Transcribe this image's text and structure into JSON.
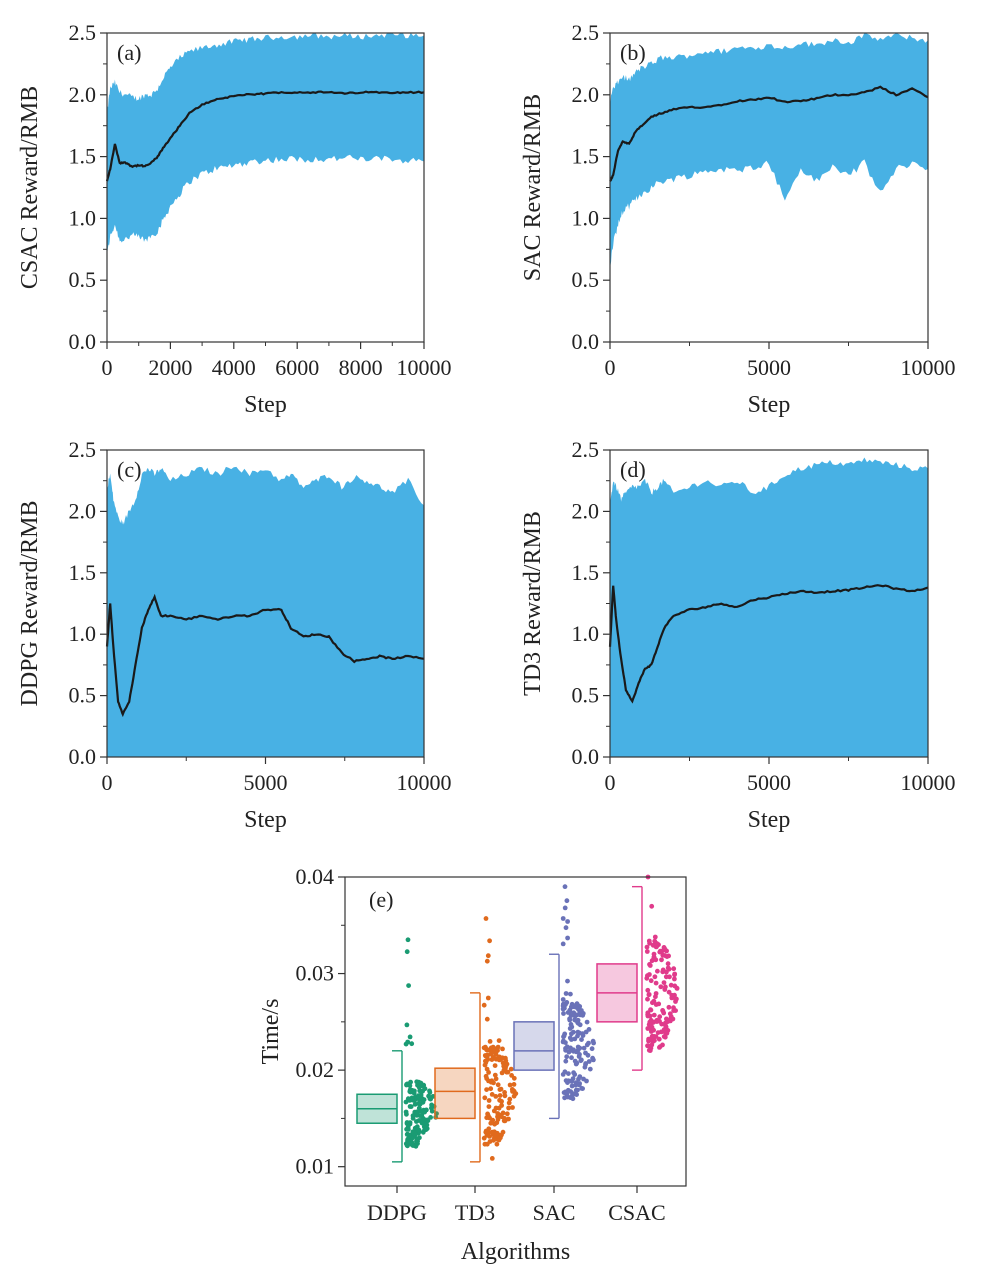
{
  "colors": {
    "band": "#48b1e4",
    "mean_line": "#1a1a1a",
    "axis": "#333333",
    "DDPG": "#1a9b73",
    "TD3": "#e06a1d",
    "SAC": "#6a72b8",
    "CSAC": "#e03b8b"
  },
  "chart_data": [
    {
      "type": "area",
      "panel_label": "(a)",
      "xlabel": "Step",
      "ylabel": "CSAC Reward/RMB",
      "xlim": [
        0,
        10000
      ],
      "ylim": [
        0,
        2.5
      ],
      "xticks": [
        0,
        2000,
        4000,
        6000,
        8000,
        10000
      ],
      "yticks": [
        0.0,
        0.5,
        1.0,
        1.5,
        2.0,
        2.5
      ],
      "x": [
        0,
        100,
        250,
        400,
        600,
        800,
        1000,
        1200,
        1400,
        1600,
        1800,
        2000,
        2300,
        2600,
        3000,
        3400,
        3800,
        4200,
        4600,
        5000,
        5500,
        6000,
        6500,
        7000,
        7500,
        8000,
        8500,
        9000,
        9500,
        10000
      ],
      "series": [
        {
          "role": "mean",
          "values": [
            1.3,
            1.4,
            1.6,
            1.45,
            1.45,
            1.42,
            1.43,
            1.42,
            1.45,
            1.5,
            1.58,
            1.65,
            1.75,
            1.85,
            1.92,
            1.96,
            1.98,
            2.0,
            2.0,
            2.01,
            2.02,
            2.02,
            2.02,
            2.02,
            2.01,
            2.02,
            2.02,
            2.02,
            2.02,
            2.02
          ]
        },
        {
          "role": "upper",
          "values": [
            1.85,
            2.05,
            2.1,
            2.02,
            2.0,
            1.98,
            1.97,
            2.0,
            2.0,
            2.05,
            2.15,
            2.22,
            2.3,
            2.35,
            2.38,
            2.4,
            2.42,
            2.44,
            2.45,
            2.46,
            2.47,
            2.47,
            2.48,
            2.47,
            2.48,
            2.47,
            2.48,
            2.49,
            2.48,
            2.48
          ]
        },
        {
          "role": "lower",
          "values": [
            0.7,
            0.85,
            0.95,
            0.82,
            0.84,
            0.86,
            0.85,
            0.82,
            0.86,
            0.9,
            1.0,
            1.1,
            1.2,
            1.3,
            1.36,
            1.4,
            1.42,
            1.44,
            1.46,
            1.47,
            1.48,
            1.48,
            1.48,
            1.48,
            1.49,
            1.48,
            1.48,
            1.48,
            1.47,
            1.46
          ]
        }
      ]
    },
    {
      "type": "area",
      "panel_label": "(b)",
      "xlabel": "Step",
      "ylabel": "SAC Reward/RMB",
      "xlim": [
        0,
        10000
      ],
      "ylim": [
        0,
        2.5
      ],
      "xticks": [
        0,
        5000,
        10000
      ],
      "yticks": [
        0.0,
        0.5,
        1.0,
        1.5,
        2.0,
        2.5
      ],
      "x": [
        0,
        100,
        250,
        400,
        600,
        800,
        1000,
        1300,
        1600,
        2000,
        2500,
        3000,
        3500,
        4000,
        4500,
        5000,
        5500,
        6000,
        6500,
        7000,
        7500,
        8000,
        8500,
        9000,
        9500,
        10000
      ],
      "series": [
        {
          "role": "mean",
          "values": [
            1.3,
            1.35,
            1.55,
            1.62,
            1.6,
            1.7,
            1.75,
            1.82,
            1.85,
            1.88,
            1.9,
            1.9,
            1.92,
            1.95,
            1.96,
            1.98,
            1.94,
            1.95,
            1.97,
            2.0,
            2.0,
            2.02,
            2.06,
            2.0,
            2.05,
            1.98
          ]
        },
        {
          "role": "upper",
          "values": [
            1.95,
            2.05,
            2.1,
            2.15,
            2.12,
            2.18,
            2.22,
            2.25,
            2.3,
            2.3,
            2.32,
            2.35,
            2.35,
            2.38,
            2.38,
            2.4,
            2.38,
            2.42,
            2.4,
            2.45,
            2.42,
            2.48,
            2.45,
            2.48,
            2.46,
            2.44
          ]
        },
        {
          "role": "lower",
          "values": [
            0.6,
            0.8,
            0.95,
            1.05,
            1.1,
            1.15,
            1.2,
            1.25,
            1.3,
            1.32,
            1.35,
            1.38,
            1.4,
            1.38,
            1.42,
            1.45,
            1.15,
            1.4,
            1.3,
            1.42,
            1.35,
            1.45,
            1.2,
            1.4,
            1.45,
            1.4
          ]
        }
      ]
    },
    {
      "type": "area",
      "panel_label": "(c)",
      "xlabel": "Step",
      "ylabel": "DDPG Reward/RMB",
      "xlim": [
        0,
        10000
      ],
      "ylim": [
        0,
        2.5
      ],
      "xticks": [
        0,
        5000,
        10000
      ],
      "yticks": [
        0.0,
        0.5,
        1.0,
        1.5,
        2.0,
        2.5
      ],
      "x": [
        0,
        100,
        200,
        350,
        500,
        700,
        900,
        1100,
        1300,
        1500,
        1700,
        2000,
        2500,
        3000,
        3500,
        4000,
        4500,
        5000,
        5500,
        5800,
        6200,
        6600,
        7000,
        7400,
        7800,
        8200,
        8600,
        9000,
        9500,
        10000
      ],
      "series": [
        {
          "role": "mean",
          "values": [
            0.9,
            1.25,
            0.9,
            0.45,
            0.35,
            0.45,
            0.75,
            1.05,
            1.2,
            1.3,
            1.15,
            1.15,
            1.12,
            1.15,
            1.12,
            1.15,
            1.15,
            1.2,
            1.2,
            1.05,
            0.98,
            1.0,
            0.98,
            0.85,
            0.78,
            0.8,
            0.82,
            0.8,
            0.82,
            0.8
          ]
        },
        {
          "role": "upper",
          "values": [
            2.2,
            2.3,
            2.1,
            1.95,
            1.9,
            2.0,
            2.1,
            2.3,
            2.35,
            2.3,
            2.35,
            2.25,
            2.3,
            2.35,
            2.3,
            2.38,
            2.3,
            2.35,
            2.25,
            2.3,
            2.2,
            2.25,
            2.3,
            2.2,
            2.28,
            2.25,
            2.2,
            2.15,
            2.25,
            2.05
          ]
        },
        {
          "role": "lower",
          "values": [
            0,
            0,
            0,
            0,
            0,
            0,
            0,
            0,
            0,
            0,
            0,
            0,
            0,
            0,
            0,
            0,
            0,
            0,
            0,
            0,
            0,
            0,
            0,
            0,
            0,
            0,
            0,
            0,
            0,
            0
          ]
        }
      ]
    },
    {
      "type": "area",
      "panel_label": "(d)",
      "xlabel": "Step",
      "ylabel": "TD3 Reward/RMB",
      "xlim": [
        0,
        10000
      ],
      "ylim": [
        0,
        2.5
      ],
      "xticks": [
        0,
        5000,
        10000
      ],
      "yticks": [
        0.0,
        0.5,
        1.0,
        1.5,
        2.0,
        2.5
      ],
      "x": [
        0,
        100,
        200,
        350,
        500,
        700,
        900,
        1100,
        1300,
        1500,
        1700,
        2000,
        2500,
        3000,
        3500,
        4000,
        4500,
        5000,
        5500,
        6000,
        6500,
        7000,
        7500,
        8000,
        8500,
        9000,
        9500,
        10000
      ],
      "series": [
        {
          "role": "mean",
          "values": [
            0.9,
            1.4,
            1.1,
            0.8,
            0.55,
            0.45,
            0.6,
            0.72,
            0.75,
            0.9,
            1.05,
            1.15,
            1.2,
            1.22,
            1.25,
            1.22,
            1.28,
            1.3,
            1.33,
            1.35,
            1.34,
            1.35,
            1.36,
            1.38,
            1.4,
            1.37,
            1.35,
            1.38
          ]
        },
        {
          "role": "upper",
          "values": [
            2.05,
            2.25,
            2.2,
            2.1,
            2.15,
            2.2,
            2.2,
            2.25,
            2.15,
            2.2,
            2.25,
            2.15,
            2.2,
            2.25,
            2.2,
            2.25,
            2.15,
            2.2,
            2.3,
            2.35,
            2.38,
            2.4,
            2.38,
            2.42,
            2.4,
            2.38,
            2.35,
            2.35
          ]
        },
        {
          "role": "lower",
          "values": [
            0,
            0,
            0,
            0,
            0,
            0,
            0,
            0,
            0,
            0,
            0,
            0,
            0,
            0,
            0,
            0,
            0,
            0,
            0,
            0,
            0,
            0,
            0,
            0,
            0,
            0,
            0,
            0
          ]
        }
      ]
    },
    {
      "type": "box",
      "panel_label": "(e)",
      "xlabel": "Algorithms",
      "ylabel": "Time/s",
      "ylim": [
        0.008,
        0.04
      ],
      "yticks": [
        0.01,
        0.02,
        0.03,
        0.04
      ],
      "ytick_labels": [
        "0.01",
        "0.02",
        "0.03",
        "0.04"
      ],
      "categories": [
        "DDPG",
        "TD3",
        "SAC",
        "CSAC"
      ],
      "series": [
        {
          "name": "DDPG",
          "min": 0.0105,
          "q1": 0.0145,
          "median": 0.016,
          "q3": 0.0175,
          "max": 0.022,
          "scatter_min": 0.0105,
          "scatter_max": 0.0335
        },
        {
          "name": "TD3",
          "min": 0.0105,
          "q1": 0.015,
          "median": 0.0178,
          "q3": 0.0202,
          "max": 0.028,
          "scatter_min": 0.0105,
          "scatter_max": 0.0357
        },
        {
          "name": "SAC",
          "min": 0.015,
          "q1": 0.02,
          "median": 0.022,
          "q3": 0.025,
          "max": 0.032,
          "scatter_min": 0.015,
          "scatter_max": 0.039
        },
        {
          "name": "CSAC",
          "min": 0.02,
          "q1": 0.025,
          "median": 0.028,
          "q3": 0.031,
          "max": 0.039,
          "scatter_min": 0.02,
          "scatter_max": 0.04
        }
      ]
    }
  ]
}
